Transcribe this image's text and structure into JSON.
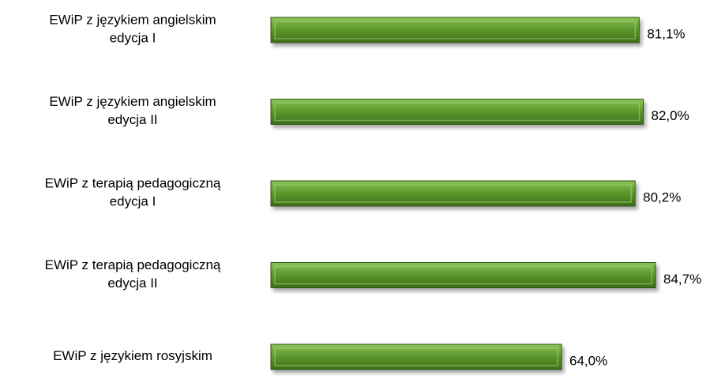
{
  "chart_data": {
    "type": "bar",
    "orientation": "horizontal",
    "categories": [
      [
        "EWiP z językiem angielskim",
        "edycja I"
      ],
      [
        "EWiP z językiem angielskim",
        "edycja II"
      ],
      [
        "EWiP z terapią pedagogiczną",
        "edycja I"
      ],
      [
        "EWiP z terapią pedagogiczną",
        "edycja II"
      ],
      [
        "EWiP z językiem rosyjskim"
      ]
    ],
    "values": [
      81.1,
      82.0,
      80.2,
      84.7,
      64.0
    ],
    "value_labels": [
      "81,1%",
      "82,0%",
      "80,2%",
      "84,7%",
      "64,0%"
    ],
    "color": "#5e9b2e"
  }
}
